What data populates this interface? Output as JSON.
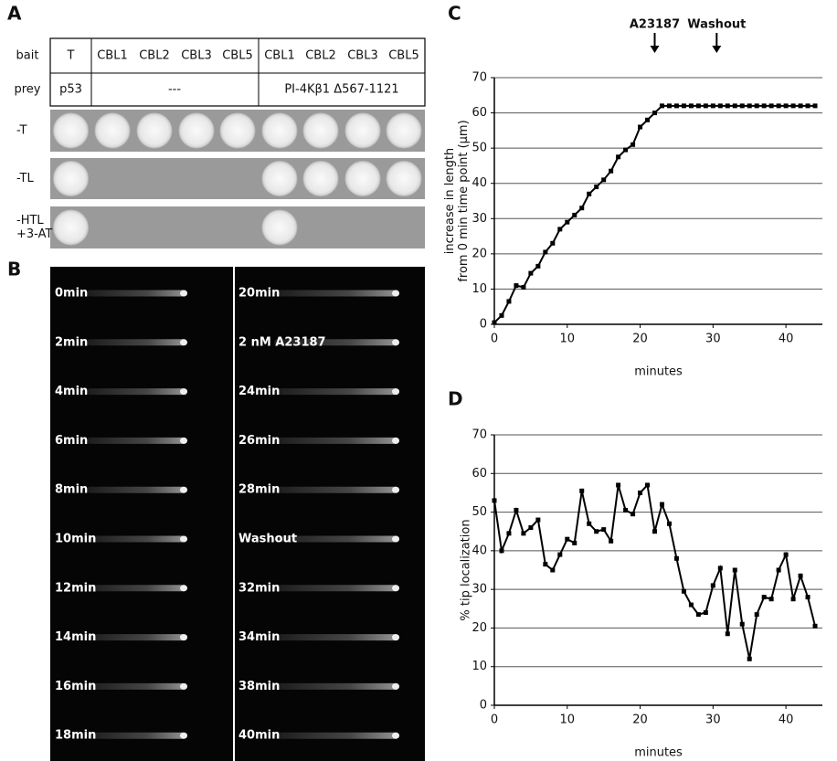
{
  "panel_labels": [
    "A",
    "B",
    "C",
    "D"
  ],
  "panel_a": {
    "row_headers": [
      "bait",
      "prey"
    ],
    "bait": [
      "T",
      "CBL1",
      "CBL2",
      "CBL3",
      "CBL5",
      "CBL1",
      "CBL2",
      "CBL3",
      "CBL5"
    ],
    "prey": [
      "p53",
      "---",
      "PI-4Kβ1 Δ567-1121"
    ],
    "media": [
      [
        "-T"
      ],
      [
        "-TL"
      ],
      [
        "-HTL",
        "+3-AT"
      ]
    ]
  },
  "panel_b": {
    "left": [
      "0min",
      "2min",
      "4min",
      "6min",
      "8min",
      "10min",
      "12min",
      "14min",
      "16min",
      "18min"
    ],
    "right": [
      "20min",
      "2 nM A23187",
      "24min",
      "26min",
      "28min",
      "Washout",
      "32min",
      "34min",
      "38min",
      "40min"
    ]
  },
  "chart_data": [
    {
      "type": "line",
      "x_label": "minutes",
      "y_label": [
        "increase in length",
        "from 0 min time point (μm)"
      ],
      "x": [
        0,
        1,
        2,
        3,
        4,
        5,
        6,
        7,
        8,
        9,
        10,
        11,
        12,
        13,
        14,
        15,
        16,
        17,
        18,
        19,
        20,
        21,
        22,
        23,
        24,
        25,
        26,
        27,
        28,
        29,
        30,
        31,
        32,
        33,
        34,
        35,
        36,
        37,
        38,
        39,
        40,
        41,
        42,
        43,
        44
      ],
      "values": [
        0.5,
        2.5,
        6.5,
        11,
        10.5,
        14.5,
        16.5,
        20.5,
        23,
        27,
        29,
        31,
        33,
        37,
        39,
        41,
        43.5,
        47.5,
        49.5,
        51,
        56,
        58,
        60,
        62,
        62,
        62,
        62,
        62,
        62,
        62,
        62,
        62,
        62,
        62,
        62,
        62,
        62,
        62,
        62,
        62,
        62,
        62,
        62,
        62,
        62
      ],
      "color": "#000000",
      "xlim": [
        0,
        45
      ],
      "ylim": [
        0,
        70
      ],
      "xticks": [
        0,
        10,
        20,
        30,
        40
      ],
      "yticks": [
        0,
        10,
        20,
        30,
        40,
        50,
        60,
        70
      ],
      "grid": true,
      "annotations": [
        {
          "text": "A23187",
          "x": 22
        },
        {
          "text": "Washout",
          "x": 30.5
        }
      ]
    },
    {
      "type": "line",
      "x_label": "minutes",
      "y_label": [
        "% tip localization"
      ],
      "x": [
        0,
        1,
        2,
        3,
        4,
        5,
        6,
        7,
        8,
        9,
        10,
        11,
        12,
        13,
        14,
        15,
        16,
        17,
        18,
        19,
        20,
        21,
        22,
        23,
        24,
        25,
        26,
        27,
        28,
        29,
        30,
        31,
        32,
        33,
        34,
        35,
        36,
        37,
        38,
        39,
        40,
        41,
        42,
        43,
        44
      ],
      "values": [
        53,
        40,
        44.5,
        50.5,
        44.5,
        46,
        48,
        36.5,
        35,
        39,
        43,
        42,
        55.5,
        47,
        45,
        45.5,
        42.5,
        57,
        50.5,
        49.5,
        55,
        57,
        45,
        52,
        47,
        38,
        29.5,
        26,
        23.5,
        24,
        31,
        35.5,
        18.5,
        35,
        21,
        12,
        23.5,
        28,
        27.5,
        35,
        39,
        27.5,
        33.5,
        28,
        20.5
      ],
      "color": "#000000",
      "xlim": [
        0,
        45
      ],
      "ylim": [
        0,
        70
      ],
      "xticks": [
        0,
        10,
        20,
        30,
        40
      ],
      "yticks": [
        0,
        10,
        20,
        30,
        40,
        50,
        60,
        70
      ],
      "grid": true
    }
  ]
}
